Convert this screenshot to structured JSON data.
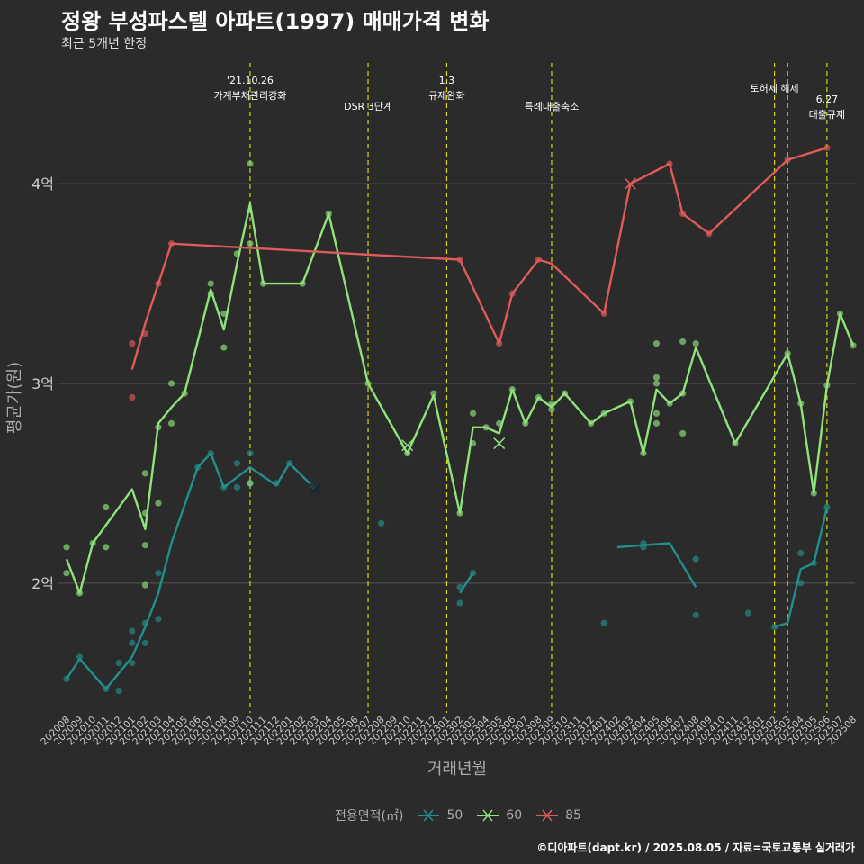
{
  "header": {
    "title": "정왕 부성파스텔 아파트(1997) 매매가격 변화",
    "subtitle": "최근 5개년 한정"
  },
  "caption": "©디아파트(dapt.kr) / 2025.08.05 / 자료=국토교통부 실거래가",
  "colors": {
    "background": "#2b2b2b",
    "s50": "#21908c",
    "s60": "#8fe37a",
    "s85": "#e05a5a",
    "event_line": "#d8d800",
    "grid": "#555555"
  },
  "chart_data": {
    "type": "line",
    "xlabel": "거래년월",
    "ylabel": "평균가(원)",
    "ylim": [
      1.35,
      4.65
    ],
    "y_ticks": [
      {
        "v": 2,
        "label": "2억"
      },
      {
        "v": 3,
        "label": "3억"
      },
      {
        "v": 4,
        "label": "4억"
      }
    ],
    "x_labels": [
      "202008",
      "202009",
      "202010",
      "202011",
      "202012",
      "202101",
      "202102",
      "202103",
      "202104",
      "202105",
      "202106",
      "202107",
      "202108",
      "202109",
      "202110",
      "202111",
      "202112",
      "202201",
      "202202",
      "202203",
      "202204",
      "202205",
      "202206",
      "202207",
      "202208",
      "202209",
      "202210",
      "202211",
      "202212",
      "202301",
      "202302",
      "202303",
      "202304",
      "202305",
      "202306",
      "202307",
      "202308",
      "202309",
      "202310",
      "202311",
      "202312",
      "202401",
      "202402",
      "202403",
      "202404",
      "202405",
      "202406",
      "202407",
      "202408",
      "202409",
      "202410",
      "202411",
      "202412",
      "202501",
      "202502",
      "202503",
      "202504",
      "202505",
      "202506",
      "202507",
      "202508"
    ],
    "legend_title": "전용면적(㎡)",
    "series": [
      {
        "name": "50",
        "color": "#21908c",
        "line": [
          [
            0,
            1.52
          ],
          [
            1,
            1.62
          ],
          [
            3,
            1.47
          ],
          [
            5,
            1.63
          ],
          [
            6,
            1.78
          ],
          [
            7,
            1.95
          ],
          [
            8,
            2.2
          ],
          [
            10,
            2.58
          ],
          [
            11,
            2.65
          ],
          [
            12,
            2.48
          ],
          [
            14,
            2.58
          ],
          [
            16,
            2.49
          ],
          [
            17,
            2.6
          ],
          [
            19,
            2.47
          ]
        ],
        "line2": [
          [
            30,
            1.95
          ],
          [
            31,
            2.05
          ]
        ],
        "line3": [
          [
            42,
            2.18
          ],
          [
            44,
            2.19
          ],
          [
            46,
            2.2
          ],
          [
            48,
            1.98
          ]
        ],
        "line4": [
          [
            54,
            1.78
          ],
          [
            55,
            1.8
          ],
          [
            56,
            2.07
          ],
          [
            57,
            2.1
          ],
          [
            58,
            2.38
          ]
        ],
        "points": [
          [
            0,
            1.52
          ],
          [
            1,
            1.63
          ],
          [
            3,
            1.47
          ],
          [
            4,
            1.46
          ],
          [
            4,
            1.6
          ],
          [
            5,
            1.6
          ],
          [
            5,
            1.7
          ],
          [
            5,
            1.76
          ],
          [
            6,
            1.7
          ],
          [
            6,
            1.8
          ],
          [
            7,
            1.82
          ],
          [
            7,
            2.05
          ],
          [
            10,
            2.58
          ],
          [
            11,
            2.65
          ],
          [
            12,
            2.48
          ],
          [
            13,
            2.48
          ],
          [
            13,
            2.6
          ],
          [
            14,
            2.5
          ],
          [
            14,
            2.65
          ],
          [
            16,
            2.5
          ],
          [
            17,
            2.6
          ],
          [
            24,
            2.3
          ],
          [
            30,
            1.9
          ],
          [
            30,
            1.98
          ],
          [
            31,
            2.05
          ],
          [
            41,
            1.8
          ],
          [
            44,
            2.18
          ],
          [
            44,
            2.2
          ],
          [
            48,
            1.84
          ],
          [
            48,
            2.12
          ],
          [
            52,
            1.85
          ],
          [
            54,
            1.78
          ],
          [
            56,
            2.0
          ],
          [
            56,
            2.15
          ],
          [
            57,
            2.1
          ],
          [
            58,
            2.38
          ]
        ],
        "cross": [
          [
            19,
            2.47
          ]
        ]
      },
      {
        "name": "60",
        "color": "#8fe37a",
        "line": [
          [
            0,
            2.12
          ],
          [
            1,
            1.95
          ],
          [
            2,
            2.2
          ],
          [
            5,
            2.47
          ],
          [
            6,
            2.27
          ],
          [
            7,
            2.8
          ],
          [
            8,
            2.88
          ],
          [
            9,
            2.95
          ],
          [
            11,
            3.47
          ],
          [
            12,
            3.27
          ],
          [
            13,
            3.6
          ],
          [
            14,
            3.9
          ],
          [
            15,
            3.5
          ],
          [
            18,
            3.5
          ],
          [
            20,
            3.85
          ],
          [
            23,
            3.0
          ],
          [
            26,
            2.65
          ],
          [
            28,
            2.94
          ],
          [
            30,
            2.35
          ],
          [
            31,
            2.78
          ],
          [
            32,
            2.78
          ],
          [
            33,
            2.75
          ],
          [
            34,
            2.97
          ],
          [
            35,
            2.8
          ],
          [
            36,
            2.93
          ],
          [
            37,
            2.88
          ],
          [
            38,
            2.95
          ],
          [
            40,
            2.8
          ],
          [
            41,
            2.85
          ],
          [
            43,
            2.91
          ],
          [
            44,
            2.65
          ],
          [
            45,
            2.97
          ],
          [
            46,
            2.9
          ],
          [
            47,
            2.95
          ],
          [
            48,
            3.18
          ],
          [
            51,
            2.7
          ],
          [
            55,
            3.15
          ],
          [
            56,
            2.9
          ],
          [
            57,
            2.45
          ],
          [
            58,
            2.99
          ],
          [
            59,
            3.35
          ],
          [
            60,
            3.19
          ]
        ],
        "points": [
          [
            0,
            2.05
          ],
          [
            0,
            2.18
          ],
          [
            1,
            1.95
          ],
          [
            2,
            2.2
          ],
          [
            3,
            2.18
          ],
          [
            3,
            2.38
          ],
          [
            6,
            1.99
          ],
          [
            6,
            2.19
          ],
          [
            6,
            2.35
          ],
          [
            6,
            2.55
          ],
          [
            7,
            2.4
          ],
          [
            7,
            2.78
          ],
          [
            8,
            2.8
          ],
          [
            8,
            3.0
          ],
          [
            9,
            2.95
          ],
          [
            11,
            3.5
          ],
          [
            11,
            3.45
          ],
          [
            12,
            3.18
          ],
          [
            12,
            3.35
          ],
          [
            13,
            3.65
          ],
          [
            14,
            4.1
          ],
          [
            14,
            3.7
          ],
          [
            14,
            2.5
          ],
          [
            15,
            3.5
          ],
          [
            18,
            3.5
          ],
          [
            20,
            3.85
          ],
          [
            23,
            3.0
          ],
          [
            26,
            2.65
          ],
          [
            28,
            2.95
          ],
          [
            30,
            2.35
          ],
          [
            31,
            2.7
          ],
          [
            31,
            2.85
          ],
          [
            32,
            2.78
          ],
          [
            33,
            2.8
          ],
          [
            34,
            2.97
          ],
          [
            35,
            2.8
          ],
          [
            36,
            2.93
          ],
          [
            37,
            2.87
          ],
          [
            37,
            2.9
          ],
          [
            38,
            2.95
          ],
          [
            40,
            2.8
          ],
          [
            41,
            2.85
          ],
          [
            43,
            2.91
          ],
          [
            44,
            2.65
          ],
          [
            45,
            2.8
          ],
          [
            45,
            2.85
          ],
          [
            45,
            3.0
          ],
          [
            45,
            3.03
          ],
          [
            45,
            3.2
          ],
          [
            46,
            2.9
          ],
          [
            47,
            2.75
          ],
          [
            47,
            2.95
          ],
          [
            47,
            3.21
          ],
          [
            48,
            3.2
          ],
          [
            51,
            2.7
          ],
          [
            55,
            3.15
          ],
          [
            56,
            2.9
          ],
          [
            57,
            2.45
          ],
          [
            58,
            2.99
          ],
          [
            59,
            3.35
          ],
          [
            60,
            3.19
          ]
        ],
        "cross": [
          [
            26,
            2.69
          ],
          [
            33,
            2.7
          ]
        ]
      },
      {
        "name": "85",
        "color": "#e05a5a",
        "line": [
          [
            5,
            3.07
          ],
          [
            6,
            3.3
          ],
          [
            7,
            3.5
          ],
          [
            8,
            3.7
          ],
          [
            30,
            3.62
          ],
          [
            33,
            3.2
          ],
          [
            34,
            3.45
          ],
          [
            36,
            3.62
          ],
          [
            37,
            3.6
          ],
          [
            41,
            3.35
          ],
          [
            43,
            4.0
          ],
          [
            46,
            4.1
          ],
          [
            47,
            3.85
          ],
          [
            49,
            3.75
          ],
          [
            55,
            4.12
          ],
          [
            58,
            4.18
          ]
        ],
        "points": [
          [
            5,
            3.2
          ],
          [
            5,
            2.93
          ],
          [
            6,
            3.25
          ],
          [
            7,
            3.5
          ],
          [
            8,
            3.7
          ],
          [
            30,
            3.62
          ],
          [
            33,
            3.2
          ],
          [
            34,
            3.45
          ],
          [
            36,
            3.62
          ],
          [
            41,
            3.35
          ],
          [
            46,
            4.1
          ],
          [
            47,
            3.85
          ],
          [
            49,
            3.75
          ],
          [
            55,
            4.12
          ],
          [
            58,
            4.18
          ]
        ],
        "cross": [
          [
            43,
            4.0
          ]
        ]
      }
    ],
    "events": [
      {
        "x": 14,
        "line1": "'21.10.26",
        "line2": "가계부채관리강화"
      },
      {
        "x": 23,
        "line1": "DSR 3단계",
        "line2": ""
      },
      {
        "x": 29,
        "line1": "1.3",
        "line2": "규제완화"
      },
      {
        "x": 37,
        "line1": "특례대출축소",
        "line2": ""
      },
      {
        "x": 54,
        "line1": "토허제 해제",
        "line2": ""
      },
      {
        "x": 55,
        "line1": "",
        "line2": ""
      },
      {
        "x": 58,
        "line1": "6.27",
        "line2": "대출규제"
      }
    ]
  }
}
